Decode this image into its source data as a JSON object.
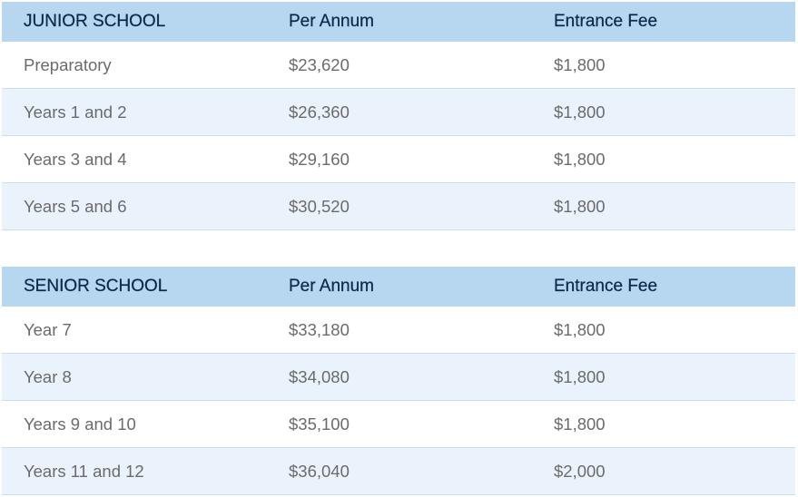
{
  "junior": {
    "headers": [
      "JUNIOR SCHOOL",
      "Per Annum",
      "Entrance Fee"
    ],
    "rows": [
      [
        "Preparatory",
        "$23,620",
        "$1,800"
      ],
      [
        "Years 1 and 2",
        "$26,360",
        "$1,800"
      ],
      [
        "Years 3 and 4",
        "$29,160",
        "$1,800"
      ],
      [
        "Years 5 and 6",
        "$30,520",
        "$1,800"
      ]
    ]
  },
  "senior": {
    "headers": [
      "SENIOR SCHOOL",
      "Per Annum",
      "Entrance Fee"
    ],
    "rows": [
      [
        "Year 7",
        "$33,180",
        "$1,800"
      ],
      [
        "Year 8",
        "$34,080",
        "$1,800"
      ],
      [
        "Years 9 and 10",
        "$35,100",
        "$1,800"
      ],
      [
        "Years 11 and 12",
        "$36,040",
        "$2,000"
      ]
    ]
  },
  "colors": {
    "header_bg": "#b6d7ef",
    "header_text": "#0d2a4e",
    "row_alt_bg": "#eaf3fc",
    "cell_text": "#6b6b6b"
  }
}
